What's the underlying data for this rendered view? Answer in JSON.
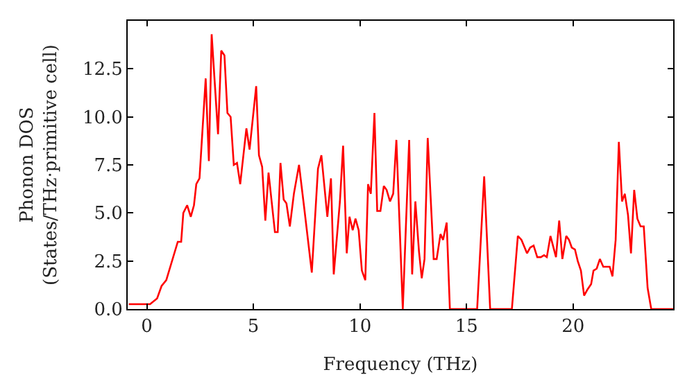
{
  "chart_data": {
    "type": "line",
    "xlabel": "Frequency (THz)",
    "ylabel": "Phonon DOS\n(States/THz·primitive cell)",
    "xlim": [
      -0.9,
      24.7
    ],
    "xticks": [
      0,
      5,
      10,
      15,
      20
    ],
    "ylim": [
      0,
      15
    ],
    "yticks": [
      {
        "value": 0,
        "label": "0.0"
      },
      {
        "value": 2.5,
        "label": "2.5"
      },
      {
        "value": 5,
        "label": "5.0"
      },
      {
        "value": 7.5,
        "label": "7.5"
      },
      {
        "value": 10,
        "label": "10.0"
      },
      {
        "value": 12.5,
        "label": "12.5"
      }
    ],
    "marker": "none",
    "line_style": "solid",
    "series": [
      {
        "color": "#ff0000",
        "x": [
          -0.85,
          0.15,
          0.48,
          0.69,
          0.91,
          1.45,
          1.61,
          1.71,
          1.89,
          2.06,
          2.21,
          2.32,
          2.47,
          2.76,
          2.91,
          3.04,
          3.34,
          3.49,
          3.64,
          3.78,
          3.93,
          4.08,
          4.23,
          4.38,
          4.67,
          4.82,
          5.13,
          5.26,
          5.41,
          5.56,
          5.71,
          6.01,
          6.14,
          6.27,
          6.42,
          6.55,
          6.71,
          6.9,
          7.14,
          7.38,
          7.74,
          8.03,
          8.19,
          8.47,
          8.64,
          8.77,
          9.06,
          9.21,
          9.38,
          9.51,
          9.66,
          9.79,
          9.94,
          10.09,
          10.25,
          10.38,
          10.51,
          10.68,
          10.81,
          10.96,
          11.12,
          11.25,
          11.41,
          11.56,
          11.71,
          12.01,
          12.31,
          12.45,
          12.6,
          12.77,
          12.9,
          13.03,
          13.18,
          13.46,
          13.6,
          13.78,
          13.9,
          14.07,
          14.22,
          15.5,
          15.83,
          16.11,
          17.13,
          17.41,
          17.58,
          17.84,
          17.99,
          18.15,
          18.32,
          18.49,
          18.64,
          18.77,
          18.94,
          19.2,
          19.35,
          19.5,
          19.68,
          19.81,
          19.94,
          20.09,
          20.22,
          20.37,
          20.52,
          20.67,
          20.85,
          20.96,
          21.11,
          21.26,
          21.42,
          21.72,
          21.85,
          22.0,
          22.15,
          22.3,
          22.43,
          22.58,
          22.72,
          22.87,
          23.02,
          23.17,
          23.32,
          23.5,
          23.67,
          24.7
        ],
        "values": [
          0.25,
          0.25,
          0.55,
          1.2,
          1.5,
          3.5,
          3.5,
          5.0,
          5.4,
          4.8,
          5.4,
          6.5,
          6.8,
          12.0,
          7.7,
          14.3,
          9.1,
          13.45,
          13.2,
          10.2,
          10.0,
          7.5,
          7.6,
          6.5,
          9.4,
          8.3,
          11.6,
          8.0,
          7.4,
          4.6,
          7.1,
          4.0,
          4.0,
          7.6,
          5.7,
          5.5,
          4.3,
          6.0,
          7.5,
          5.3,
          1.9,
          7.3,
          8.0,
          4.8,
          6.8,
          1.8,
          5.6,
          8.5,
          2.9,
          4.8,
          4.1,
          4.7,
          4.1,
          2.0,
          1.5,
          6.5,
          6.0,
          10.2,
          5.1,
          5.1,
          6.4,
          6.2,
          5.6,
          6.0,
          8.8,
          0,
          8.8,
          1.8,
          5.6,
          3.0,
          1.6,
          2.6,
          8.9,
          2.6,
          2.6,
          3.9,
          3.6,
          4.5,
          0,
          0,
          6.9,
          0,
          0,
          3.8,
          3.6,
          2.9,
          3.2,
          3.3,
          2.7,
          2.7,
          2.8,
          2.7,
          3.8,
          2.7,
          4.6,
          2.6,
          3.8,
          3.6,
          3.2,
          3.1,
          2.5,
          2.0,
          0.7,
          1.0,
          1.3,
          2.0,
          2.1,
          2.6,
          2.2,
          2.2,
          1.7,
          3.6,
          8.7,
          5.6,
          6.0,
          4.9,
          2.9,
          6.2,
          4.7,
          4.3,
          4.3,
          1.1,
          0,
          0
        ]
      }
    ]
  }
}
